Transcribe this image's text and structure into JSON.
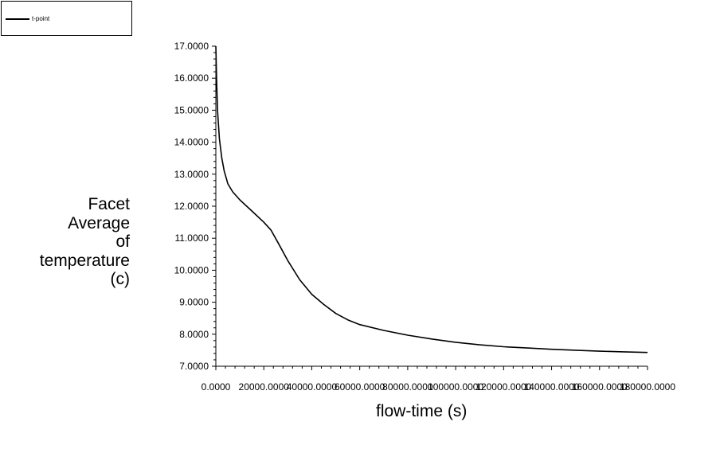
{
  "legend": {
    "entries": [
      "t-point"
    ]
  },
  "chart_data": {
    "type": "line",
    "xlabel": "flow-time (s)",
    "ylabel_lines": [
      "Facet",
      "Average",
      "of",
      "temperature",
      "(c)"
    ],
    "xlim": [
      0,
      180000
    ],
    "ylim": [
      7,
      17
    ],
    "x_ticks": [
      0,
      20000,
      40000,
      60000,
      80000,
      100000,
      120000,
      140000,
      160000,
      180000
    ],
    "x_tick_labels": [
      "0.0000",
      "20000.0000",
      "40000.0000",
      "60000.0000",
      "80000.0000",
      "100000.0000",
      "120000.0000",
      "140000.0000",
      "160000.0000",
      "180000.0000"
    ],
    "y_ticks": [
      7,
      8,
      9,
      10,
      11,
      12,
      13,
      14,
      15,
      16,
      17
    ],
    "y_tick_labels": [
      "7.0000",
      "8.0000",
      "9.0000",
      "10.0000",
      "11.0000",
      "12.0000",
      "13.0000",
      "14.0000",
      "15.0000",
      "16.0000",
      "17.0000"
    ],
    "grid": false,
    "legend_position": "top-left",
    "series": [
      {
        "name": "t-point",
        "color": "#000000",
        "x": [
          0,
          300,
          700,
          1500,
          2500,
          3500,
          5000,
          7000,
          10000,
          15000,
          20000,
          23000,
          26000,
          30000,
          35000,
          40000,
          45000,
          50000,
          55000,
          60000,
          70000,
          80000,
          90000,
          100000,
          110000,
          120000,
          130000,
          140000,
          150000,
          160000,
          170000,
          180000
        ],
        "y": [
          17.0,
          16.0,
          15.0,
          14.1,
          13.5,
          13.1,
          12.7,
          12.45,
          12.2,
          11.85,
          11.5,
          11.25,
          10.85,
          10.3,
          9.7,
          9.25,
          8.93,
          8.65,
          8.45,
          8.3,
          8.12,
          7.97,
          7.85,
          7.75,
          7.67,
          7.61,
          7.57,
          7.53,
          7.5,
          7.47,
          7.45,
          7.43
        ]
      }
    ]
  }
}
